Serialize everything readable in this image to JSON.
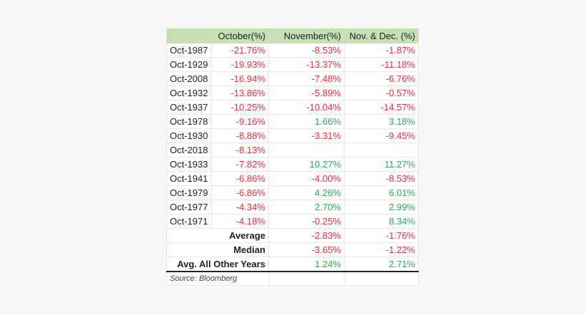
{
  "table": {
    "headers": [
      "",
      "October(%)",
      "November(%)",
      "Nov. & Dec. (%)"
    ],
    "rows": [
      {
        "label": "Oct-1987",
        "oct": "-21.76%",
        "nov": "-8.53%",
        "novdec": "-1.87%"
      },
      {
        "label": "Oct-1929",
        "oct": "-19.93%",
        "nov": "-13.37%",
        "novdec": "-11.18%"
      },
      {
        "label": "Oct-2008",
        "oct": "-16.94%",
        "nov": "-7.48%",
        "novdec": "-6.76%"
      },
      {
        "label": "Oct-1932",
        "oct": "-13.86%",
        "nov": "-5.89%",
        "novdec": "-0.57%"
      },
      {
        "label": "Oct-1937",
        "oct": "-10.25%",
        "nov": "-10.04%",
        "novdec": "-14.57%"
      },
      {
        "label": "Oct-1978",
        "oct": "-9.16%",
        "nov": "1.66%",
        "novdec": "3.18%"
      },
      {
        "label": "Oct-1930",
        "oct": "-8.88%",
        "nov": "-3.31%",
        "novdec": "-9.45%"
      },
      {
        "label": "Oct-2018",
        "oct": "-8.13%",
        "nov": "",
        "novdec": ""
      },
      {
        "label": "Oct-1933",
        "oct": "-7.82%",
        "nov": "10.27%",
        "novdec": "11.27%"
      },
      {
        "label": "Oct-1941",
        "oct": "-6.86%",
        "nov": "-4.00%",
        "novdec": "-8.53%"
      },
      {
        "label": "Oct-1979",
        "oct": "-6.86%",
        "nov": "4.26%",
        "novdec": "6.01%"
      },
      {
        "label": "Oct-1977",
        "oct": "-4.34%",
        "nov": "2.70%",
        "novdec": "2.99%"
      },
      {
        "label": "Oct-1971",
        "oct": "-4.18%",
        "nov": "-0.25%",
        "novdec": "8.34%"
      }
    ],
    "summary": [
      {
        "label": "Average",
        "nov": "-2.83%",
        "novdec": "-1.76%"
      },
      {
        "label": "Median",
        "nov": "-3.65%",
        "novdec": "-1.22%"
      },
      {
        "label": "Avg. All Other Years",
        "nov": "1.24%",
        "novdec": "2.71%"
      }
    ],
    "source": "Source: Bloomberg"
  },
  "colors": {
    "header_bg": "#c6e0b4",
    "negative": "#e0303a",
    "positive": "#2eaa56"
  }
}
